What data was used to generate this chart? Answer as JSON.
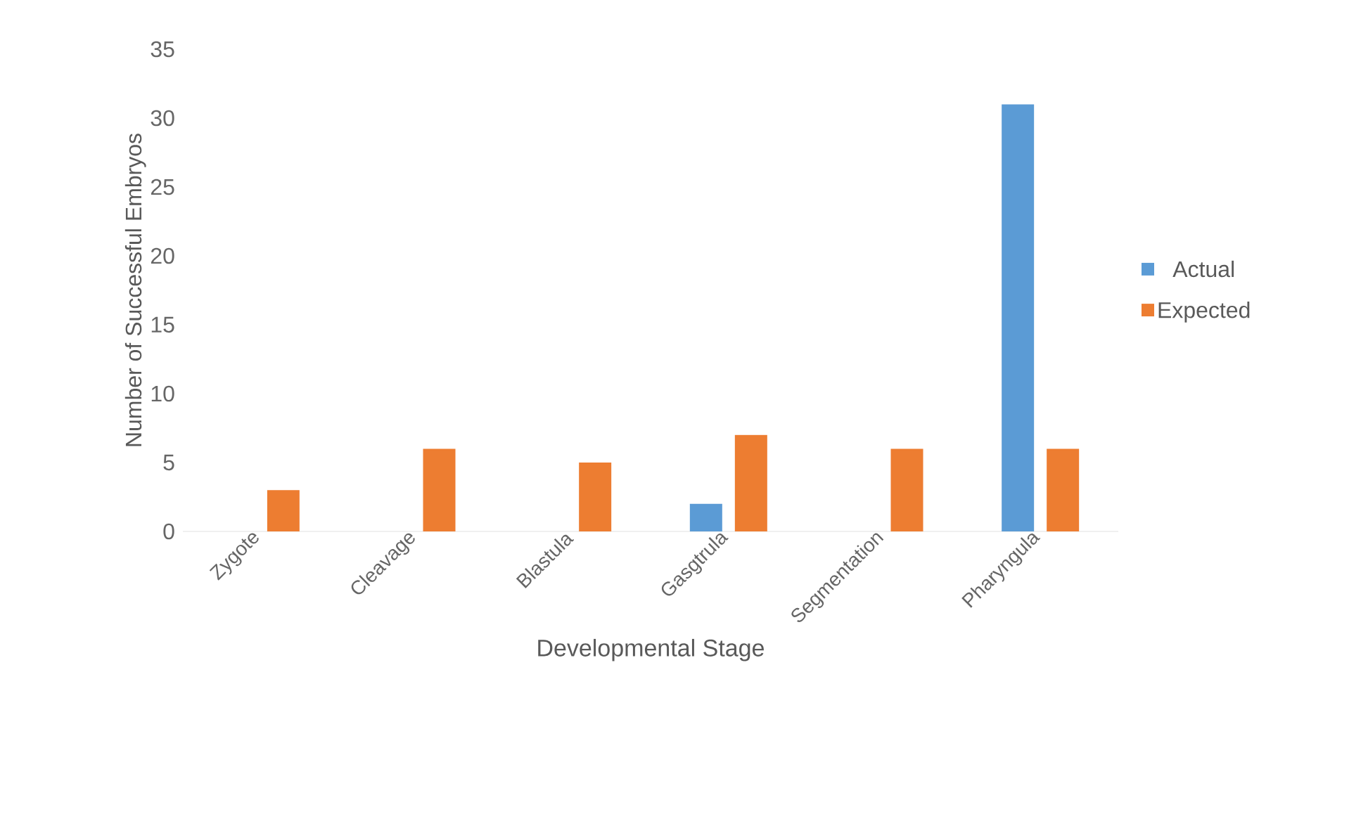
{
  "chart_data": {
    "type": "bar",
    "xlabel": "Developmental Stage",
    "ylabel": "Number of Successful Embryos",
    "categories": [
      "Zygote",
      "Cleavage",
      "Blastula",
      "Gasgtrula",
      "Segmentation",
      "Pharyngula"
    ],
    "series": [
      {
        "name": "Actual",
        "color": "#5b9bd5",
        "values": [
          0,
          0,
          0,
          2,
          0,
          31
        ]
      },
      {
        "name": "Expected",
        "color": "#ed7d31",
        "values": [
          3,
          6,
          5,
          7,
          6,
          6
        ]
      }
    ],
    "ylim": [
      0,
      35
    ],
    "yticks": [
      0,
      5,
      10,
      15,
      20,
      25,
      30,
      35
    ],
    "legend": "right"
  }
}
